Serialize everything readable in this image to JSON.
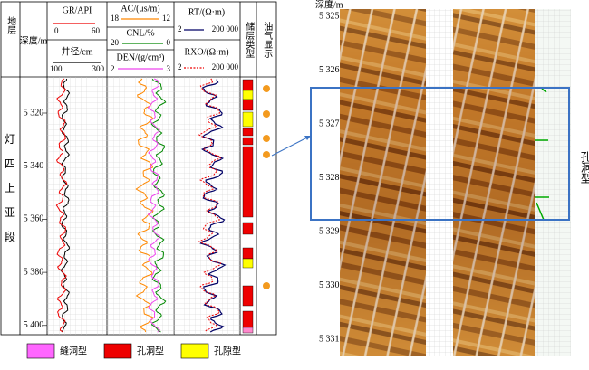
{
  "headers": {
    "strata": "地层",
    "depth": "深度/m",
    "gr": {
      "name": "GR/API",
      "min": "0",
      "max": "60"
    },
    "cal": {
      "name": "井径/cm",
      "min": "100",
      "max": "300"
    },
    "ac": {
      "name": "AC/(μs/m)",
      "min": "18",
      "max": "12"
    },
    "cnl": {
      "name": "CNL/%",
      "min": "20",
      "max": "0"
    },
    "den": {
      "name": "DEN/(g/cm³)",
      "min": "2",
      "max": "3"
    },
    "rt": {
      "name": "RT/(Ω·m)",
      "min": "2",
      "max": "200 000"
    },
    "rxo": {
      "name": "RXO/(Ω·m)",
      "min": "2",
      "max": "200 000"
    },
    "reservoir": "储层类型",
    "oil": "油气显示"
  },
  "formation": [
    "灯",
    "四",
    "上",
    "亚",
    "段"
  ],
  "log_depths": [
    "5 320",
    "5 340",
    "5 360",
    "5 380",
    "5 400"
  ],
  "image": {
    "depth_title": "深度/m",
    "depths": [
      "5 325",
      "5 326",
      "5 327",
      "5 328",
      "5 329",
      "5 330",
      "5 331"
    ],
    "zone_label": "孔洞型"
  },
  "legend": [
    "缝洞型",
    "孔洞型",
    "孔隙型"
  ]
}
